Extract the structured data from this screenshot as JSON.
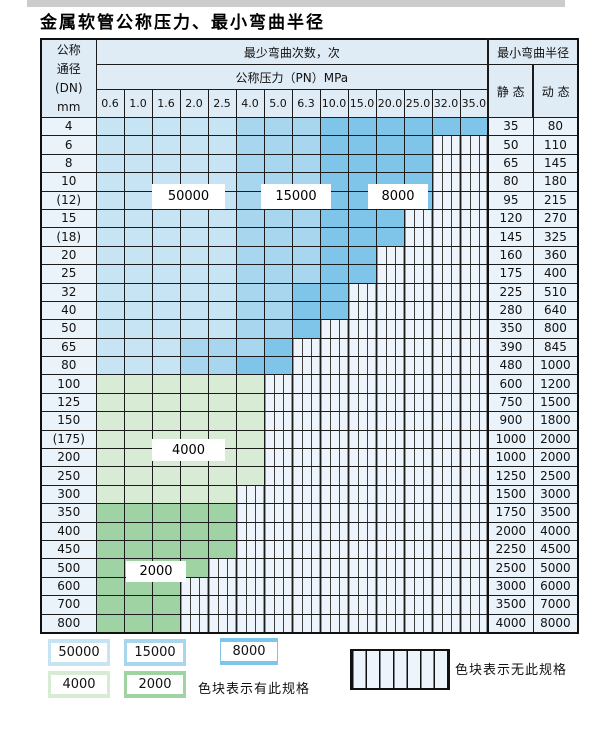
{
  "title": "金属软管公称压力、最小弯曲半径",
  "header": {
    "dn_lines": [
      "公称",
      "通径",
      "(DN)",
      "mm"
    ],
    "bend_cycles_label": "最少弯曲次数，次",
    "pressure_label": "公称压力（PN）MPa",
    "min_bend_radius_label": "最小弯曲半径",
    "static_label": "静 态",
    "dynamic_label": "动 态",
    "pressure_columns": [
      "0.6",
      "1.0",
      "1.6",
      "2.0",
      "2.5",
      "4.0",
      "5.0",
      "6.3",
      "10.0",
      "15.0",
      "20.0",
      "25.0",
      "32.0",
      "35.0"
    ]
  },
  "zone_colors": {
    "5": "#c7e4f5",
    "1": "#a9d6ef",
    "8": "#7fc5ea",
    "4": "#d8ecd5",
    "2": "#9fd3a3"
  },
  "cell_code_values": {
    "5": "50000",
    "1": "15000",
    "8": "8000",
    "4": "4000",
    "2": "2000",
    "x": "无此规格"
  },
  "rows": [
    {
      "dn": "4",
      "cells": "55555111888888",
      "static": "35",
      "dynamic": "80"
    },
    {
      "dn": "6",
      "cells": "555551118888xx",
      "static": "50",
      "dynamic": "110"
    },
    {
      "dn": "8",
      "cells": "555551118888xx",
      "static": "65",
      "dynamic": "145"
    },
    {
      "dn": "10",
      "cells": "555551118888xx",
      "static": "80",
      "dynamic": "180"
    },
    {
      "dn": "(12)",
      "cells": "555551118888xx",
      "static": "95",
      "dynamic": "215"
    },
    {
      "dn": "15",
      "cells": "55555111888xxx",
      "static": "120",
      "dynamic": "270"
    },
    {
      "dn": "(18)",
      "cells": "55555111888xxx",
      "static": "145",
      "dynamic": "325"
    },
    {
      "dn": "20",
      "cells": "5555511188xxxx",
      "static": "160",
      "dynamic": "360"
    },
    {
      "dn": "25",
      "cells": "5555511188xxxx",
      "static": "175",
      "dynamic": "400"
    },
    {
      "dn": "32",
      "cells": "555551188xxxxx",
      "static": "225",
      "dynamic": "510"
    },
    {
      "dn": "40",
      "cells": "555551188xxxxx",
      "static": "280",
      "dynamic": "640"
    },
    {
      "dn": "50",
      "cells": "55555118xxxxxx",
      "static": "350",
      "dynamic": "800"
    },
    {
      "dn": "65",
      "cells": "5551118xxxxxxx",
      "static": "390",
      "dynamic": "845"
    },
    {
      "dn": "80",
      "cells": "5551188xxxxxxx",
      "static": "480",
      "dynamic": "1000"
    },
    {
      "dn": "100",
      "cells": "444444xxxxxxxx",
      "static": "600",
      "dynamic": "1200"
    },
    {
      "dn": "125",
      "cells": "444444xxxxxxxx",
      "static": "750",
      "dynamic": "1500"
    },
    {
      "dn": "150",
      "cells": "444444xxxxxxxx",
      "static": "900",
      "dynamic": "1800"
    },
    {
      "dn": "(175)",
      "cells": "444444xxxxxxxx",
      "static": "1000",
      "dynamic": "2000"
    },
    {
      "dn": "200",
      "cells": "444444xxxxxxxx",
      "static": "1000",
      "dynamic": "2000"
    },
    {
      "dn": "250",
      "cells": "444444xxxxxxxx",
      "static": "1250",
      "dynamic": "2500"
    },
    {
      "dn": "300",
      "cells": "44444xxxxxxxxx",
      "static": "1500",
      "dynamic": "3000"
    },
    {
      "dn": "350",
      "cells": "22222xxxxxxxxx",
      "static": "1750",
      "dynamic": "3500"
    },
    {
      "dn": "400",
      "cells": "22222xxxxxxxxx",
      "static": "2000",
      "dynamic": "4000"
    },
    {
      "dn": "450",
      "cells": "22222xxxxxxxxx",
      "static": "2250",
      "dynamic": "4500"
    },
    {
      "dn": "500",
      "cells": "2222xxxxxxxxxx",
      "static": "2500",
      "dynamic": "5000"
    },
    {
      "dn": "600",
      "cells": "222xxxxxxxxxxx",
      "static": "3000",
      "dynamic": "6000"
    },
    {
      "dn": "700",
      "cells": "222xxxxxxxxxxx",
      "static": "3500",
      "dynamic": "7000"
    },
    {
      "dn": "800",
      "cells": "222xxxxxxxxxxx",
      "static": "4000",
      "dynamic": "8000"
    }
  ],
  "legend": {
    "swatches": [
      {
        "value": "50000",
        "color": "#c7e4f5"
      },
      {
        "value": "15000",
        "color": "#a9d6ef"
      },
      {
        "value": "8000",
        "color": "#7fc5ea"
      },
      {
        "value": "4000",
        "color": "#d8ecd5"
      },
      {
        "value": "2000",
        "color": "#9fd3a3"
      }
    ],
    "has_spec_text": "色块表示有此规格",
    "no_spec_text": "色块表示无此规格"
  }
}
